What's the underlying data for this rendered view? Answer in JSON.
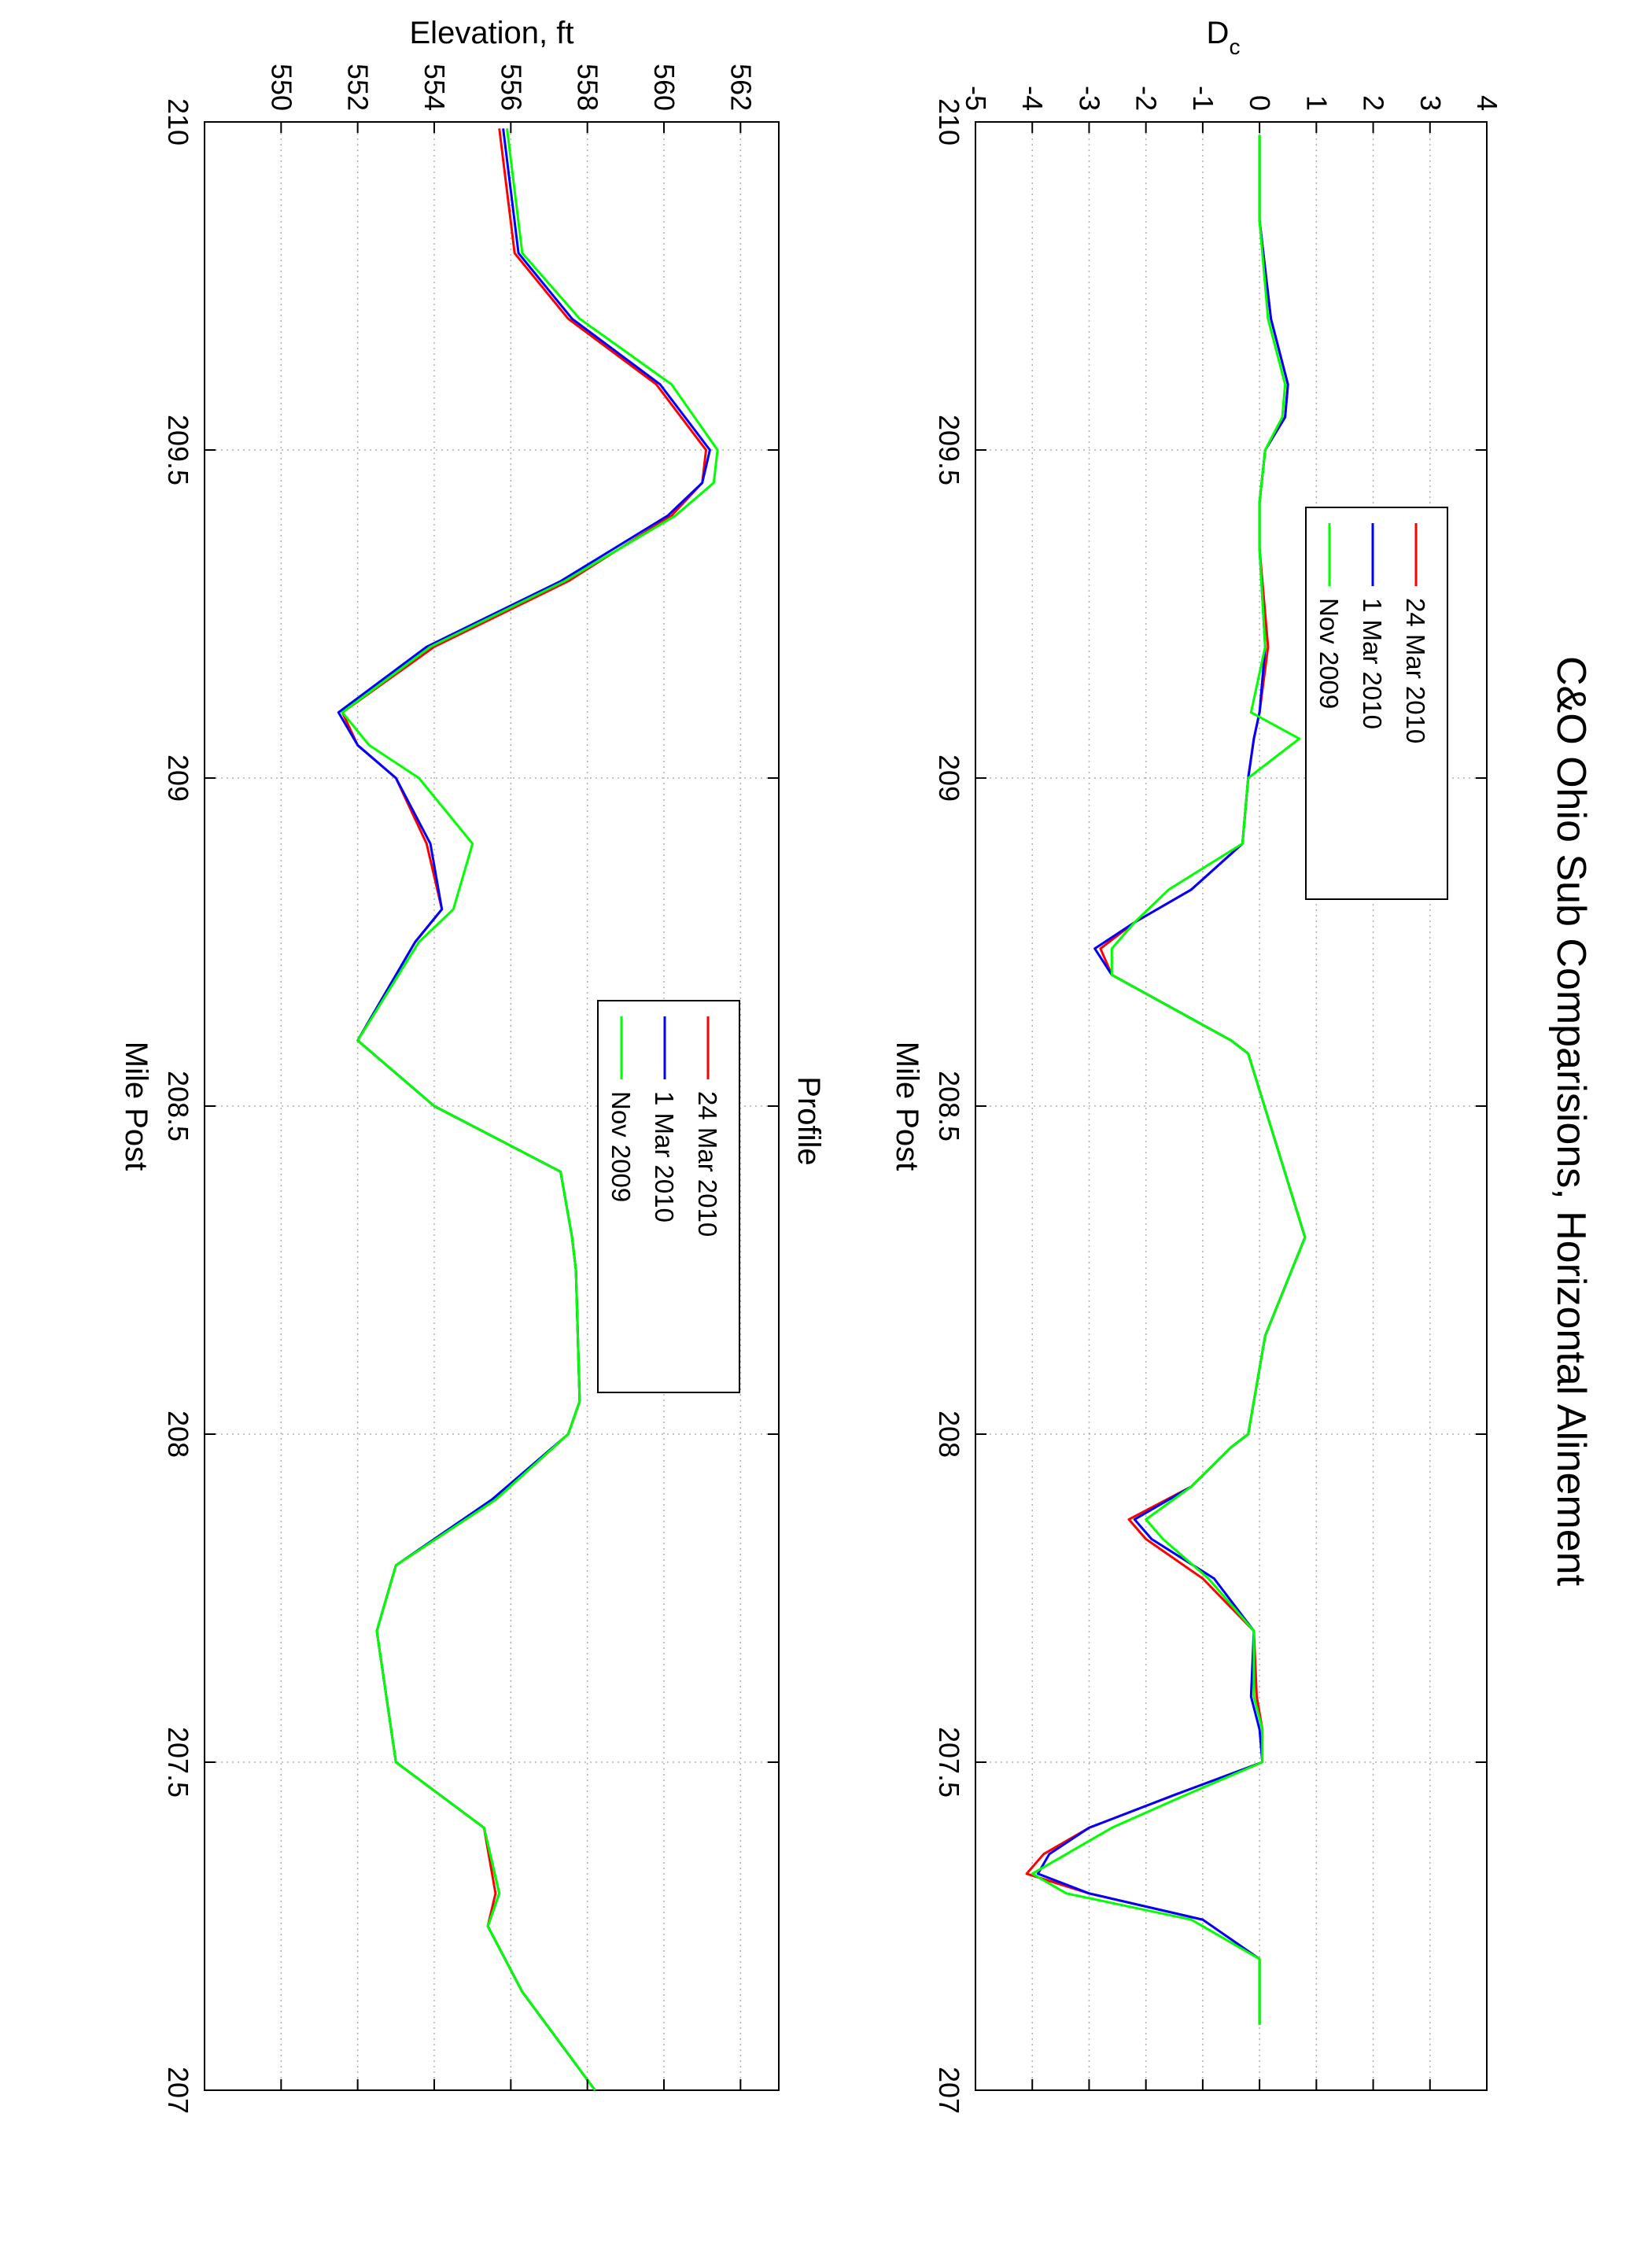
{
  "title": "C&O Ohio Sub Comparisions,   Horizontal Alinement",
  "colors": {
    "red": "#ff0000",
    "blue": "#0000ff",
    "green": "#00ff00",
    "grid": "#b0b0b0"
  },
  "chart_data": [
    {
      "type": "line",
      "title": "",
      "xlabel": "Mile Post",
      "ylabel": "Dc",
      "ylabel_main": "D",
      "ylabel_sub": "c",
      "xlim": [
        210,
        207
      ],
      "ylim": [
        -5,
        4
      ],
      "xticks": [
        210,
        209.5,
        209,
        208.5,
        208,
        207.5,
        207
      ],
      "xtick_labels": [
        "210",
        "209.5",
        "209",
        "208.5",
        "208",
        "207.5",
        "207"
      ],
      "yticks": [
        -5,
        -4,
        -3,
        -2,
        -1,
        0,
        1,
        2,
        3,
        4
      ],
      "ytick_labels": [
        "-5",
        "-4",
        "-3",
        "-2",
        "-1",
        "0",
        "1",
        "2",
        "3",
        "4"
      ],
      "grid": true,
      "legend_position": "bottom-left",
      "series": [
        {
          "name": "24 Mar 2010",
          "color": "#ff0000",
          "x": [
            209.98,
            209.85,
            209.7,
            209.6,
            209.55,
            209.5,
            209.42,
            209.35,
            209.2,
            209.1,
            209.06,
            209.0,
            208.9,
            208.83,
            208.78,
            208.74,
            208.7,
            208.6,
            208.58,
            208.3,
            208.15,
            208.0,
            207.98,
            207.92,
            207.87,
            207.84,
            207.78,
            207.7,
            207.6,
            207.55,
            207.5,
            207.45,
            207.4,
            207.36,
            207.33,
            207.3,
            207.26,
            207.2,
            207.1
          ],
          "y": [
            0,
            0,
            0.2,
            0.5,
            0.45,
            0.1,
            0,
            0,
            0.15,
            0,
            -0.1,
            -0.2,
            -0.3,
            -1.2,
            -2.2,
            -2.8,
            -2.6,
            -0.5,
            -0.2,
            0.8,
            0.1,
            -0.2,
            -0.5,
            -1.2,
            -2.3,
            -2.0,
            -1.0,
            -0.1,
            -0.05,
            0.05,
            0.05,
            -1.5,
            -3.0,
            -3.8,
            -4.1,
            -3.0,
            -1.0,
            0,
            0
          ]
        },
        {
          "name": "1 Mar 2010",
          "color": "#0000ff",
          "x": [
            209.98,
            209.85,
            209.7,
            209.6,
            209.55,
            209.5,
            209.42,
            209.35,
            209.2,
            209.1,
            209.06,
            209.0,
            208.9,
            208.83,
            208.78,
            208.74,
            208.7,
            208.6,
            208.58,
            208.3,
            208.15,
            208.0,
            207.98,
            207.92,
            207.87,
            207.84,
            207.78,
            207.7,
            207.6,
            207.55,
            207.5,
            207.45,
            207.4,
            207.36,
            207.33,
            207.3,
            207.26,
            207.2,
            207.1
          ],
          "y": [
            0,
            0,
            0.2,
            0.5,
            0.45,
            0.1,
            0,
            0,
            0.1,
            0,
            -0.1,
            -0.2,
            -0.3,
            -1.2,
            -2.2,
            -2.9,
            -2.6,
            -0.5,
            -0.2,
            0.8,
            0.1,
            -0.2,
            -0.5,
            -1.2,
            -2.2,
            -1.9,
            -0.8,
            -0.1,
            -0.15,
            0.0,
            0.05,
            -1.5,
            -3.0,
            -3.7,
            -3.9,
            -3.0,
            -1.0,
            0,
            0
          ]
        },
        {
          "name": "Nov 2009",
          "color": "#00ff00",
          "x": [
            209.98,
            209.85,
            209.7,
            209.6,
            209.55,
            209.5,
            209.42,
            209.35,
            209.2,
            209.1,
            209.06,
            209.0,
            208.9,
            208.83,
            208.78,
            208.74,
            208.7,
            208.6,
            208.58,
            208.3,
            208.15,
            208.0,
            207.98,
            207.92,
            207.87,
            207.84,
            207.78,
            207.7,
            207.6,
            207.55,
            207.5,
            207.45,
            207.4,
            207.36,
            207.33,
            207.3,
            207.26,
            207.2,
            207.1
          ],
          "y": [
            0,
            0,
            0.15,
            0.45,
            0.4,
            0.1,
            0,
            0,
            0.1,
            -0.15,
            0.7,
            -0.2,
            -0.3,
            -1.6,
            -2.2,
            -2.6,
            -2.6,
            -0.5,
            -0.2,
            0.8,
            0.1,
            -0.2,
            -0.5,
            -1.2,
            -2.0,
            -1.7,
            -0.9,
            -0.1,
            -0.1,
            0.05,
            0.05,
            -1.3,
            -2.6,
            -3.4,
            -4.0,
            -3.4,
            -1.2,
            0,
            0
          ]
        }
      ]
    },
    {
      "type": "line",
      "title": "Profile",
      "xlabel": "Mile Post",
      "ylabel": "Elevation, ft",
      "xlim": [
        210,
        207
      ],
      "ylim": [
        548,
        563
      ],
      "xticks": [
        210,
        209.5,
        209,
        208.5,
        208,
        207.5,
        207
      ],
      "xtick_labels": [
        "210",
        "209.5",
        "209",
        "208.5",
        "208",
        "207.5",
        "207"
      ],
      "yticks": [
        550,
        552,
        554,
        556,
        558,
        560,
        562
      ],
      "ytick_labels": [
        "550",
        "552",
        "554",
        "556",
        "558",
        "560",
        "562"
      ],
      "grid": true,
      "legend_position": "top-center",
      "series": [
        {
          "name": "24 Mar 2010",
          "color": "#ff0000",
          "x": [
            209.99,
            209.8,
            209.7,
            209.6,
            209.5,
            209.45,
            209.4,
            209.3,
            209.2,
            209.1,
            209.05,
            209.0,
            208.9,
            208.8,
            208.75,
            208.6,
            208.5,
            208.4,
            208.3,
            208.25,
            208.05,
            208.0,
            207.9,
            207.8,
            207.7,
            207.5,
            207.4,
            207.3,
            207.25,
            207.15,
            207.0
          ],
          "y": [
            555.7,
            556.1,
            557.5,
            559.8,
            561.1,
            561.0,
            560.2,
            557.5,
            554.0,
            551.6,
            552.0,
            553.0,
            553.8,
            554.2,
            553.5,
            552.0,
            554.0,
            557.3,
            557.6,
            557.7,
            557.8,
            557.5,
            555.6,
            553.0,
            552.5,
            553.0,
            555.3,
            555.6,
            555.4,
            556.3,
            558.2
          ]
        },
        {
          "name": "1 Mar 2010",
          "color": "#0000ff",
          "x": [
            209.99,
            209.8,
            209.7,
            209.6,
            209.5,
            209.45,
            209.4,
            209.3,
            209.2,
            209.1,
            209.05,
            209.0,
            208.9,
            208.8,
            208.75,
            208.6,
            208.5,
            208.4,
            208.3,
            208.25,
            208.05,
            208.0,
            207.9,
            207.8,
            207.7,
            207.5,
            207.4,
            207.3,
            207.25,
            207.15,
            207.0
          ],
          "y": [
            555.8,
            556.2,
            557.6,
            559.9,
            561.2,
            561.0,
            560.1,
            557.3,
            553.8,
            551.5,
            552.0,
            553.0,
            553.9,
            554.2,
            553.5,
            552.0,
            554.0,
            557.3,
            557.6,
            557.7,
            557.8,
            557.5,
            555.5,
            553.0,
            552.5,
            553.0,
            555.3,
            555.7,
            555.4,
            556.3,
            558.2
          ]
        },
        {
          "name": "Nov 2009",
          "color": "#00ff00",
          "x": [
            209.99,
            209.8,
            209.7,
            209.6,
            209.5,
            209.45,
            209.4,
            209.3,
            209.2,
            209.1,
            209.05,
            209.0,
            208.9,
            208.8,
            208.75,
            208.6,
            208.5,
            208.4,
            208.3,
            208.25,
            208.05,
            208.0,
            207.9,
            207.8,
            207.7,
            207.5,
            207.4,
            207.3,
            207.25,
            207.15,
            207.0
          ],
          "y": [
            555.9,
            556.3,
            557.8,
            560.2,
            561.4,
            561.3,
            560.3,
            557.4,
            553.9,
            551.6,
            552.3,
            553.6,
            555.0,
            554.5,
            553.6,
            552.0,
            554.0,
            557.3,
            557.6,
            557.7,
            557.8,
            557.5,
            555.6,
            553.0,
            552.5,
            553.0,
            555.3,
            555.7,
            555.4,
            556.3,
            558.2
          ]
        }
      ]
    }
  ]
}
